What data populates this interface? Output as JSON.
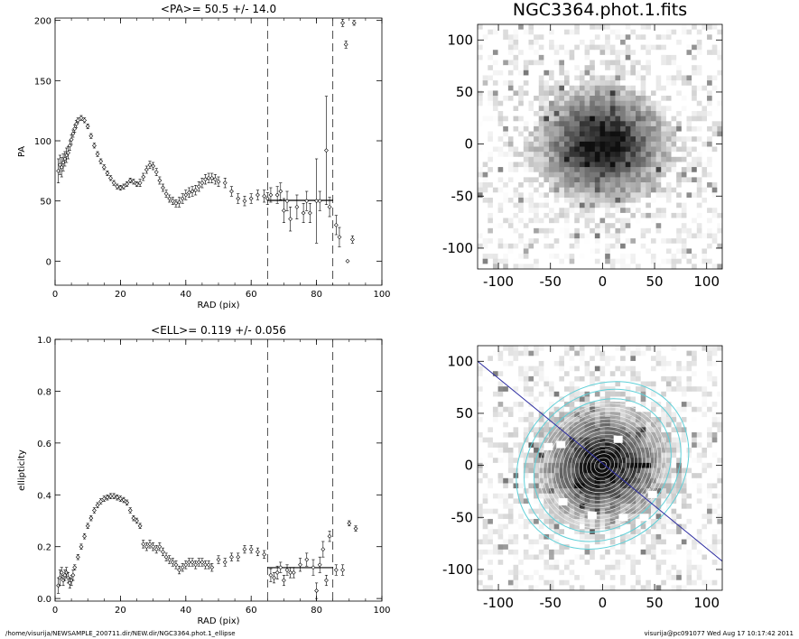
{
  "footer": {
    "left": "/home/visurija/NEWSAMPLE_200711.dir/NEW.dir/NGC3364.phot.1_ellipse",
    "right": "visurija@pc091077  Wed Aug 17 10:17:42 2011"
  },
  "chart_data": [
    {
      "id": "pa",
      "type": "scatter",
      "title": "<PA>=  50.5 +/-  14.0",
      "xlabel": "RAD (pix)",
      "ylabel": "PA",
      "xlim": [
        0,
        100
      ],
      "ylim": [
        -20,
        202
      ],
      "xticks": [
        0,
        20,
        40,
        60,
        80,
        100
      ],
      "yticks": [
        0,
        50,
        100,
        150,
        200
      ],
      "dashed_x": [
        65,
        85
      ],
      "mean_line": {
        "x0": 65,
        "x1": 85,
        "y": 50.5
      },
      "points": [
        {
          "x": 1,
          "y": 75,
          "e": 10
        },
        {
          "x": 1.5,
          "y": 80,
          "e": 8
        },
        {
          "x": 2,
          "y": 78,
          "e": 8
        },
        {
          "x": 2.5,
          "y": 82,
          "e": 7
        },
        {
          "x": 3,
          "y": 85,
          "e": 6
        },
        {
          "x": 3.5,
          "y": 88,
          "e": 6
        },
        {
          "x": 4,
          "y": 90,
          "e": 5
        },
        {
          "x": 4.5,
          "y": 96,
          "e": 4
        },
        {
          "x": 5,
          "y": 101,
          "e": 4
        },
        {
          "x": 5.5,
          "y": 106,
          "e": 3
        },
        {
          "x": 6,
          "y": 110,
          "e": 3
        },
        {
          "x": 6.5,
          "y": 114,
          "e": 3
        },
        {
          "x": 7,
          "y": 117,
          "e": 2
        },
        {
          "x": 8,
          "y": 119,
          "e": 2
        },
        {
          "x": 9,
          "y": 117,
          "e": 2
        },
        {
          "x": 10,
          "y": 112,
          "e": 2
        },
        {
          "x": 11,
          "y": 104,
          "e": 2
        },
        {
          "x": 12,
          "y": 96,
          "e": 2
        },
        {
          "x": 13,
          "y": 89,
          "e": 2
        },
        {
          "x": 14,
          "y": 83,
          "e": 2
        },
        {
          "x": 15,
          "y": 78,
          "e": 2
        },
        {
          "x": 16,
          "y": 73,
          "e": 2
        },
        {
          "x": 17,
          "y": 69,
          "e": 2
        },
        {
          "x": 18,
          "y": 65,
          "e": 2
        },
        {
          "x": 19,
          "y": 62,
          "e": 2
        },
        {
          "x": 20,
          "y": 61,
          "e": 2
        },
        {
          "x": 21,
          "y": 62,
          "e": 2
        },
        {
          "x": 22,
          "y": 64,
          "e": 2
        },
        {
          "x": 23,
          "y": 67,
          "e": 2
        },
        {
          "x": 24,
          "y": 66,
          "e": 2
        },
        {
          "x": 25,
          "y": 64,
          "e": 2
        },
        {
          "x": 26,
          "y": 65,
          "e": 3
        },
        {
          "x": 27,
          "y": 70,
          "e": 3
        },
        {
          "x": 28,
          "y": 76,
          "e": 3
        },
        {
          "x": 29,
          "y": 80,
          "e": 3
        },
        {
          "x": 30,
          "y": 79,
          "e": 3
        },
        {
          "x": 31,
          "y": 74,
          "e": 3
        },
        {
          "x": 32,
          "y": 67,
          "e": 3
        },
        {
          "x": 33,
          "y": 61,
          "e": 3
        },
        {
          "x": 34,
          "y": 56,
          "e": 3
        },
        {
          "x": 35,
          "y": 52,
          "e": 3
        },
        {
          "x": 36,
          "y": 50,
          "e": 3
        },
        {
          "x": 37,
          "y": 48,
          "e": 3
        },
        {
          "x": 38,
          "y": 49,
          "e": 4
        },
        {
          "x": 39,
          "y": 52,
          "e": 4
        },
        {
          "x": 40,
          "y": 55,
          "e": 4
        },
        {
          "x": 41,
          "y": 57,
          "e": 4
        },
        {
          "x": 42,
          "y": 58,
          "e": 4
        },
        {
          "x": 43,
          "y": 59,
          "e": 4
        },
        {
          "x": 44,
          "y": 62,
          "e": 4
        },
        {
          "x": 45,
          "y": 65,
          "e": 4
        },
        {
          "x": 46,
          "y": 68,
          "e": 4
        },
        {
          "x": 47,
          "y": 69,
          "e": 4
        },
        {
          "x": 48,
          "y": 69,
          "e": 4
        },
        {
          "x": 49,
          "y": 68,
          "e": 4
        },
        {
          "x": 50,
          "y": 66,
          "e": 4
        },
        {
          "x": 52,
          "y": 65,
          "e": 4
        },
        {
          "x": 54,
          "y": 58,
          "e": 4
        },
        {
          "x": 56,
          "y": 52,
          "e": 4
        },
        {
          "x": 58,
          "y": 50,
          "e": 4
        },
        {
          "x": 60,
          "y": 52,
          "e": 4
        },
        {
          "x": 62,
          "y": 55,
          "e": 4
        },
        {
          "x": 64,
          "y": 54,
          "e": 5
        },
        {
          "x": 65,
          "y": 52,
          "e": 5
        },
        {
          "x": 66,
          "y": 55,
          "e": 6
        },
        {
          "x": 68,
          "y": 55,
          "e": 7
        },
        {
          "x": 69,
          "y": 58,
          "e": 7
        },
        {
          "x": 70,
          "y": 42,
          "e": 10
        },
        {
          "x": 71,
          "y": 50,
          "e": 8
        },
        {
          "x": 72,
          "y": 35,
          "e": 10
        },
        {
          "x": 74,
          "y": 45,
          "e": 10
        },
        {
          "x": 76,
          "y": 40,
          "e": 8
        },
        {
          "x": 77,
          "y": 50,
          "e": 8
        },
        {
          "x": 78,
          "y": 40,
          "e": 8
        },
        {
          "x": 80,
          "y": 50,
          "e": 35
        },
        {
          "x": 81,
          "y": 50,
          "e": 8
        },
        {
          "x": 83,
          "y": 92,
          "e": 45
        },
        {
          "x": 84,
          "y": 45,
          "e": 8
        },
        {
          "x": 86,
          "y": 30,
          "e": 8
        },
        {
          "x": 87,
          "y": 20,
          "e": 8
        },
        {
          "x": 88,
          "y": 198,
          "e": 3
        },
        {
          "x": 89,
          "y": 180,
          "e": 3
        },
        {
          "x": 91,
          "y": 18,
          "e": 3
        },
        {
          "x": 91.5,
          "y": 198,
          "e": 2
        },
        {
          "x": 89.5,
          "y": 0,
          "e": 0
        }
      ]
    },
    {
      "id": "ell",
      "type": "scatter",
      "title": "<ELL>= 0.119 +/-  0.056",
      "xlabel": "RAD (pix)",
      "ylabel": "ellipticity",
      "xlim": [
        0,
        100
      ],
      "ylim": [
        -0.01,
        1.0
      ],
      "xticks": [
        0,
        20,
        40,
        60,
        80,
        100
      ],
      "yticks": [
        0.0,
        0.2,
        0.4,
        0.6,
        0.8,
        1.0
      ],
      "dashed_x": [
        65,
        85
      ],
      "mean_line": {
        "x0": 65,
        "x1": 85,
        "y": 0.119
      },
      "points": [
        {
          "x": 1,
          "y": 0.05,
          "e": 0.03
        },
        {
          "x": 1.5,
          "y": 0.08,
          "e": 0.03
        },
        {
          "x": 2,
          "y": 0.1,
          "e": 0.02
        },
        {
          "x": 2.5,
          "y": 0.07,
          "e": 0.02
        },
        {
          "x": 3,
          "y": 0.09,
          "e": 0.02
        },
        {
          "x": 3.5,
          "y": 0.1,
          "e": 0.02
        },
        {
          "x": 4,
          "y": 0.08,
          "e": 0.02
        },
        {
          "x": 4.5,
          "y": 0.06,
          "e": 0.02
        },
        {
          "x": 5,
          "y": 0.07,
          "e": 0.02
        },
        {
          "x": 5.5,
          "y": 0.09,
          "e": 0.02
        },
        {
          "x": 6,
          "y": 0.12,
          "e": 0.01
        },
        {
          "x": 7,
          "y": 0.16,
          "e": 0.01
        },
        {
          "x": 8,
          "y": 0.2,
          "e": 0.01
        },
        {
          "x": 9,
          "y": 0.24,
          "e": 0.01
        },
        {
          "x": 10,
          "y": 0.28,
          "e": 0.01
        },
        {
          "x": 11,
          "y": 0.31,
          "e": 0.01
        },
        {
          "x": 12,
          "y": 0.34,
          "e": 0.01
        },
        {
          "x": 13,
          "y": 0.36,
          "e": 0.01
        },
        {
          "x": 14,
          "y": 0.375,
          "e": 0.01
        },
        {
          "x": 15,
          "y": 0.385,
          "e": 0.01
        },
        {
          "x": 16,
          "y": 0.39,
          "e": 0.01
        },
        {
          "x": 17,
          "y": 0.395,
          "e": 0.01
        },
        {
          "x": 18,
          "y": 0.395,
          "e": 0.01
        },
        {
          "x": 19,
          "y": 0.39,
          "e": 0.01
        },
        {
          "x": 20,
          "y": 0.385,
          "e": 0.01
        },
        {
          "x": 21,
          "y": 0.38,
          "e": 0.01
        },
        {
          "x": 22,
          "y": 0.37,
          "e": 0.01
        },
        {
          "x": 23,
          "y": 0.34,
          "e": 0.01
        },
        {
          "x": 24,
          "y": 0.31,
          "e": 0.01
        },
        {
          "x": 25,
          "y": 0.3,
          "e": 0.01
        },
        {
          "x": 26,
          "y": 0.28,
          "e": 0.01
        },
        {
          "x": 27,
          "y": 0.21,
          "e": 0.015
        },
        {
          "x": 28,
          "y": 0.2,
          "e": 0.015
        },
        {
          "x": 29,
          "y": 0.21,
          "e": 0.015
        },
        {
          "x": 30,
          "y": 0.2,
          "e": 0.015
        },
        {
          "x": 31,
          "y": 0.19,
          "e": 0.015
        },
        {
          "x": 32,
          "y": 0.2,
          "e": 0.015
        },
        {
          "x": 33,
          "y": 0.18,
          "e": 0.015
        },
        {
          "x": 34,
          "y": 0.16,
          "e": 0.015
        },
        {
          "x": 35,
          "y": 0.15,
          "e": 0.015
        },
        {
          "x": 36,
          "y": 0.14,
          "e": 0.015
        },
        {
          "x": 37,
          "y": 0.13,
          "e": 0.015
        },
        {
          "x": 38,
          "y": 0.11,
          "e": 0.015
        },
        {
          "x": 39,
          "y": 0.12,
          "e": 0.015
        },
        {
          "x": 40,
          "y": 0.13,
          "e": 0.015
        },
        {
          "x": 41,
          "y": 0.14,
          "e": 0.015
        },
        {
          "x": 42,
          "y": 0.14,
          "e": 0.015
        },
        {
          "x": 43,
          "y": 0.13,
          "e": 0.015
        },
        {
          "x": 44,
          "y": 0.14,
          "e": 0.015
        },
        {
          "x": 45,
          "y": 0.14,
          "e": 0.015
        },
        {
          "x": 46,
          "y": 0.13,
          "e": 0.015
        },
        {
          "x": 47,
          "y": 0.13,
          "e": 0.015
        },
        {
          "x": 48,
          "y": 0.12,
          "e": 0.015
        },
        {
          "x": 50,
          "y": 0.15,
          "e": 0.015
        },
        {
          "x": 52,
          "y": 0.14,
          "e": 0.015
        },
        {
          "x": 54,
          "y": 0.16,
          "e": 0.015
        },
        {
          "x": 56,
          "y": 0.16,
          "e": 0.015
        },
        {
          "x": 58,
          "y": 0.19,
          "e": 0.015
        },
        {
          "x": 60,
          "y": 0.19,
          "e": 0.015
        },
        {
          "x": 62,
          "y": 0.18,
          "e": 0.015
        },
        {
          "x": 64,
          "y": 0.17,
          "e": 0.015
        },
        {
          "x": 66,
          "y": 0.09,
          "e": 0.025
        },
        {
          "x": 67,
          "y": 0.08,
          "e": 0.02
        },
        {
          "x": 68,
          "y": 0.1,
          "e": 0.025
        },
        {
          "x": 69,
          "y": 0.12,
          "e": 0.02
        },
        {
          "x": 70,
          "y": 0.07,
          "e": 0.02
        },
        {
          "x": 71,
          "y": 0.11,
          "e": 0.02
        },
        {
          "x": 72,
          "y": 0.1,
          "e": 0.02
        },
        {
          "x": 73,
          "y": 0.1,
          "e": 0.02
        },
        {
          "x": 75,
          "y": 0.13,
          "e": 0.025
        },
        {
          "x": 77,
          "y": 0.15,
          "e": 0.025
        },
        {
          "x": 79,
          "y": 0.12,
          "e": 0.03
        },
        {
          "x": 80,
          "y": 0.03,
          "e": 0.03
        },
        {
          "x": 81,
          "y": 0.13,
          "e": 0.03
        },
        {
          "x": 82,
          "y": 0.19,
          "e": 0.03
        },
        {
          "x": 83,
          "y": 0.07,
          "e": 0.02
        },
        {
          "x": 84,
          "y": 0.24,
          "e": 0.02
        },
        {
          "x": 86,
          "y": 0.11,
          "e": 0.02
        },
        {
          "x": 88,
          "y": 0.11,
          "e": 0.02
        },
        {
          "x": 90,
          "y": 0.29,
          "e": 0.01
        },
        {
          "x": 92,
          "y": 0.27,
          "e": 0.01
        }
      ]
    },
    {
      "id": "img1",
      "type": "heatmap",
      "title": "NGC3364.phot.1.fits",
      "xlim": [
        -120,
        115
      ],
      "ylim": [
        -120,
        115
      ],
      "xticks": [
        -100,
        -50,
        0,
        50,
        100
      ],
      "yticks": [
        -100,
        -50,
        0,
        50,
        100
      ]
    },
    {
      "id": "img2",
      "type": "heatmap",
      "title": "",
      "xlim": [
        -120,
        115
      ],
      "ylim": [
        -120,
        115
      ],
      "xticks": [
        -100,
        -50,
        0,
        50,
        100
      ],
      "yticks": [
        -100,
        -50,
        0,
        50,
        100
      ],
      "pa_line_color": "#2a2aa0",
      "outer_contour_color": "#5fd0d8"
    }
  ]
}
